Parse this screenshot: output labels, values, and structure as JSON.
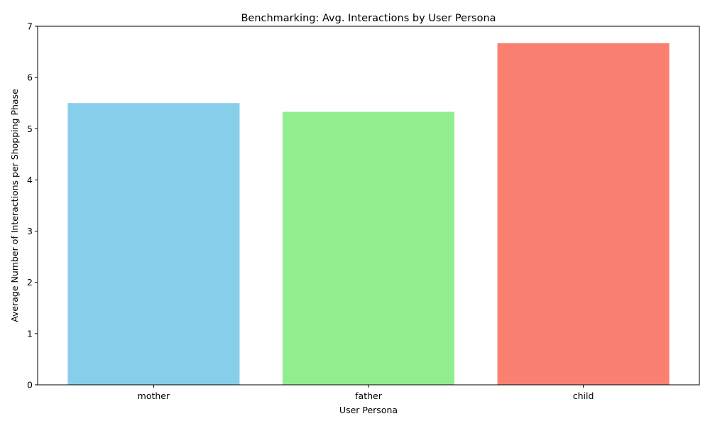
{
  "chart_data": {
    "type": "bar",
    "title": "Benchmarking: Avg. Interactions by User Persona",
    "xlabel": "User Persona",
    "ylabel": "Average Number of Interactions per Shopping Phase",
    "categories": [
      "mother",
      "father",
      "child"
    ],
    "values": [
      5.5,
      5.33,
      6.67
    ],
    "colors": [
      "#87ceeb",
      "#90ee90",
      "#fa8072"
    ],
    "ylim": [
      0,
      7
    ],
    "yticks": [
      0,
      1,
      2,
      3,
      4,
      5,
      6,
      7
    ],
    "grid": false,
    "legend": "none"
  }
}
